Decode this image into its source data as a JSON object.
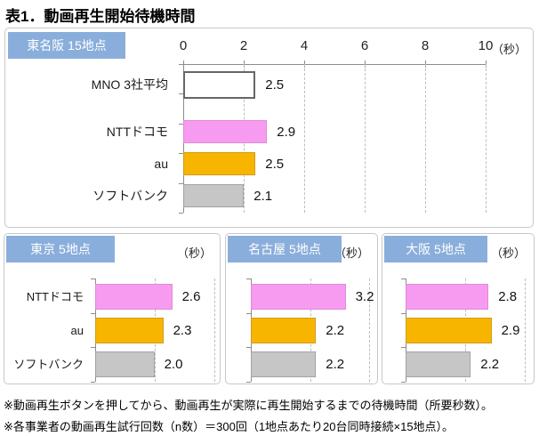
{
  "title": "表1．動画再生開始待機時間",
  "colors": {
    "header_bg": "#8AAEDB",
    "header_text": "#FFFFFF",
    "panel_border": "#C8C8C8",
    "axis": "#8C8C8C",
    "gridline": "#BDBDBD",
    "docomo_fill": "#F79BF0",
    "docomo_border": "#E08BD8",
    "au_fill": "#F8B500",
    "au_border": "#D19C1C",
    "softbank_fill": "#C6C6C6",
    "softbank_border": "#A2A2A2",
    "average_fill": "#FFFFFF",
    "average_border": "#666666"
  },
  "chart_data": [
    {
      "type": "bar",
      "orientation": "horizontal",
      "title": "東名阪 15地点",
      "unit": "（秒）",
      "categories": [
        "MNO 3社平均",
        "NTTドコモ",
        "au",
        "ソフトバンク"
      ],
      "values": [
        2.5,
        2.9,
        2.5,
        2.1
      ],
      "value_labels": [
        "2.5",
        "2.9",
        "2.5",
        "2.1"
      ],
      "xlim": [
        0,
        10
      ],
      "xtick_labels": [
        "0",
        "2",
        "4",
        "6",
        "8",
        "10"
      ],
      "grid": "vertical-dashed",
      "legend": "none"
    },
    {
      "type": "bar",
      "orientation": "horizontal",
      "title": "東京 5地点",
      "unit": "（秒）",
      "categories": [
        "NTTドコモ",
        "au",
        "ソフトバンク"
      ],
      "values": [
        2.6,
        2.3,
        2.0
      ],
      "value_labels": [
        "2.6",
        "2.3",
        "2.0"
      ],
      "xlim": [
        0,
        4.4
      ],
      "grid": "vertical-dashed",
      "legend": "none"
    },
    {
      "type": "bar",
      "orientation": "horizontal",
      "title": "名古屋 5地点",
      "unit": "（秒）",
      "categories": [
        "NTTドコモ",
        "au",
        "ソフトバンク"
      ],
      "values": [
        3.2,
        2.2,
        2.2
      ],
      "value_labels": [
        "3.2",
        "2.2",
        "2.2"
      ],
      "xlim": [
        0,
        4.4
      ],
      "grid": "vertical-dashed",
      "legend": "none"
    },
    {
      "type": "bar",
      "orientation": "horizontal",
      "title": "大阪 5地点",
      "unit": "（秒）",
      "categories": [
        "NTTドコモ",
        "au",
        "ソフトバンク"
      ],
      "values": [
        2.8,
        2.9,
        2.2
      ],
      "value_labels": [
        "2.8",
        "2.9",
        "2.2"
      ],
      "xlim": [
        0,
        4.4
      ],
      "grid": "vertical-dashed",
      "legend": "none"
    }
  ],
  "footnotes": [
    "※動画再生ボタンを押してから、動画再生が実際に再生開始するまでの待機時間（所要秒数）。",
    "※各事業者の動画再生試行回数（n数）＝300回（1地点あたり20台同時接続×15地点）。"
  ]
}
